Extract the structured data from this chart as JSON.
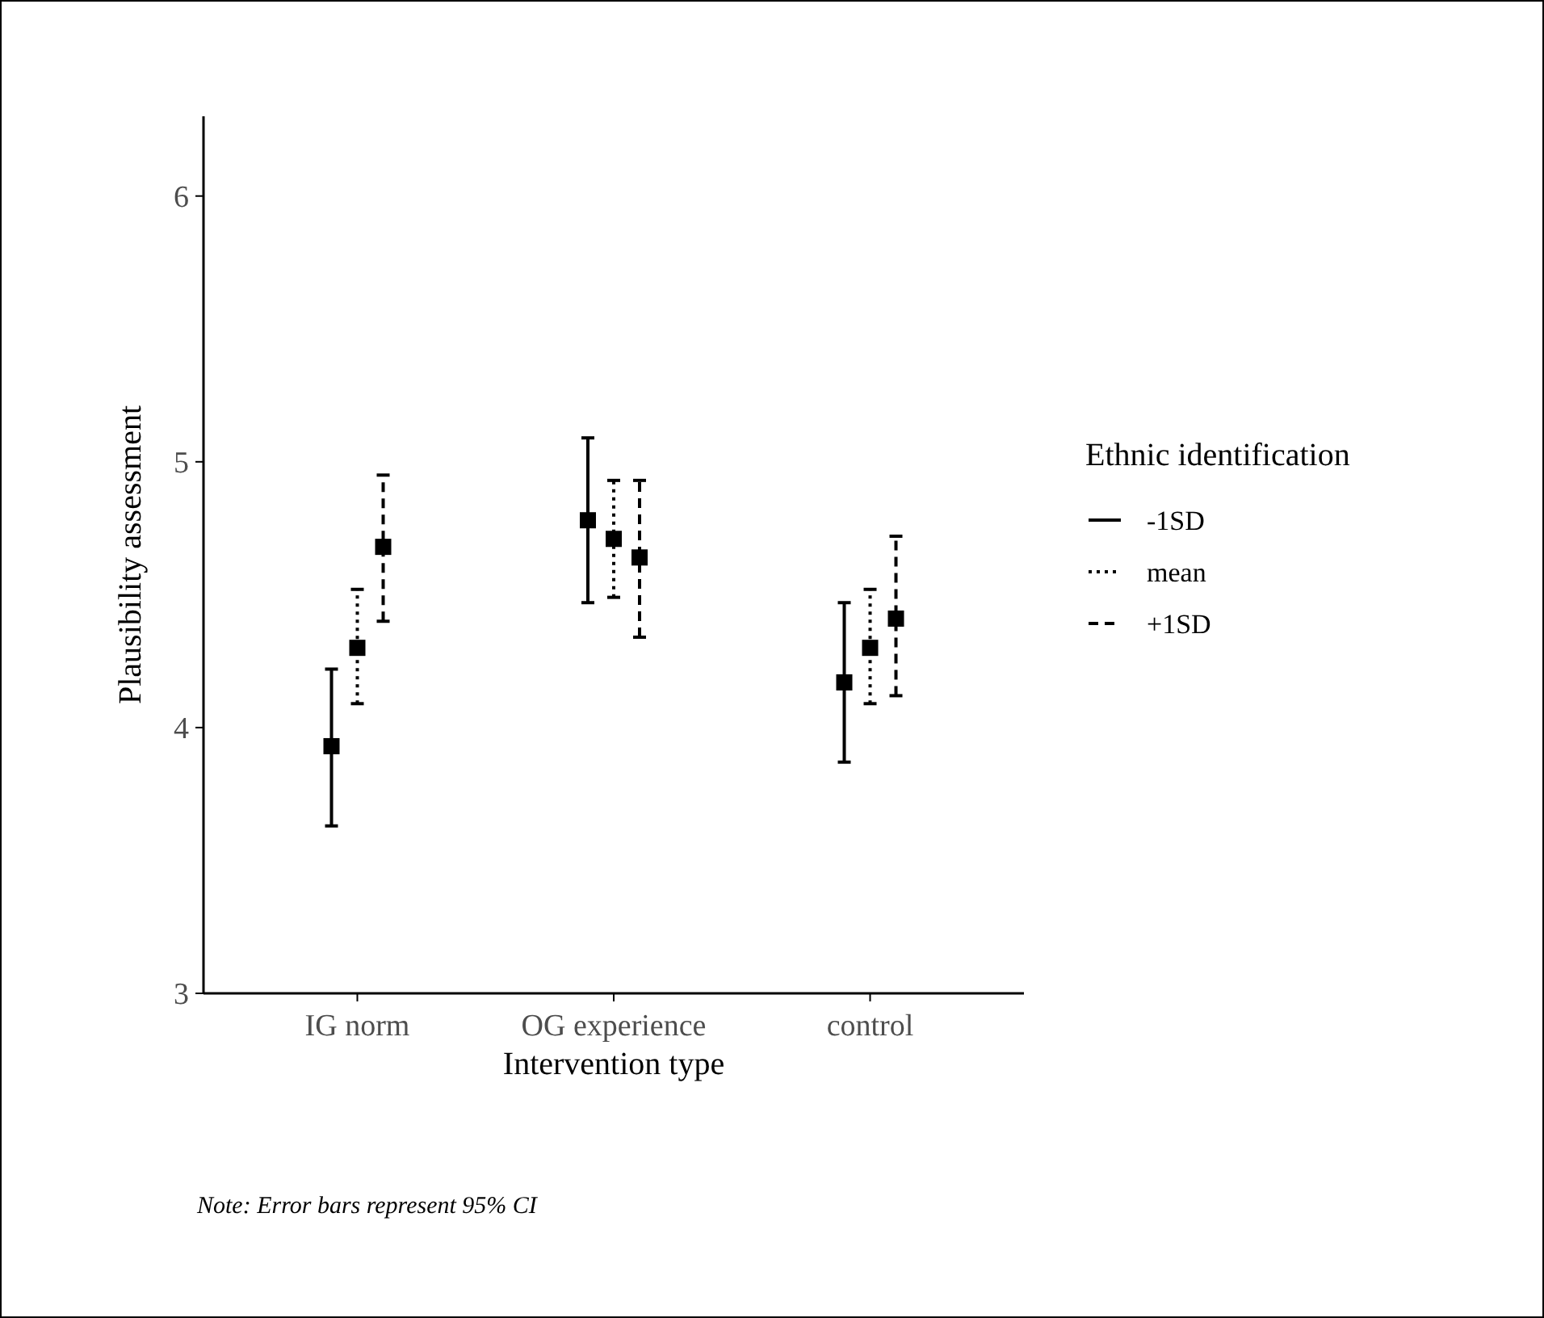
{
  "chart_data": {
    "type": "scatter",
    "xlabel": "Intervention type",
    "ylabel": "Plausibility assessment",
    "legend_title": "Ethnic identification",
    "legend": "right",
    "marker": "square",
    "categories": [
      "IG norm",
      "OG experience",
      "control"
    ],
    "ylim": [
      3,
      6.3
    ],
    "yticks": [
      3,
      4,
      5,
      6
    ],
    "grid": false,
    "series": [
      {
        "name": "-1SD",
        "color": "#000000",
        "line_style": "solid",
        "values": [
          3.93,
          4.78,
          4.17
        ],
        "errors": [
          [
            3.63,
            4.22
          ],
          [
            4.47,
            5.09
          ],
          [
            3.87,
            4.47
          ]
        ]
      },
      {
        "name": "mean",
        "color": "#000000",
        "line_style": "dotted",
        "values": [
          4.3,
          4.71,
          4.3
        ],
        "errors": [
          [
            4.09,
            4.52
          ],
          [
            4.49,
            4.93
          ],
          [
            4.09,
            4.52
          ]
        ]
      },
      {
        "name": "+1SD",
        "color": "#000000",
        "line_style": "dashed",
        "values": [
          4.68,
          4.64,
          4.41
        ],
        "errors": [
          [
            4.4,
            4.95
          ],
          [
            4.34,
            4.93
          ],
          [
            4.12,
            4.72
          ]
        ]
      }
    ],
    "annotations": [
      "Note: Error bars represent 95% CI"
    ]
  }
}
